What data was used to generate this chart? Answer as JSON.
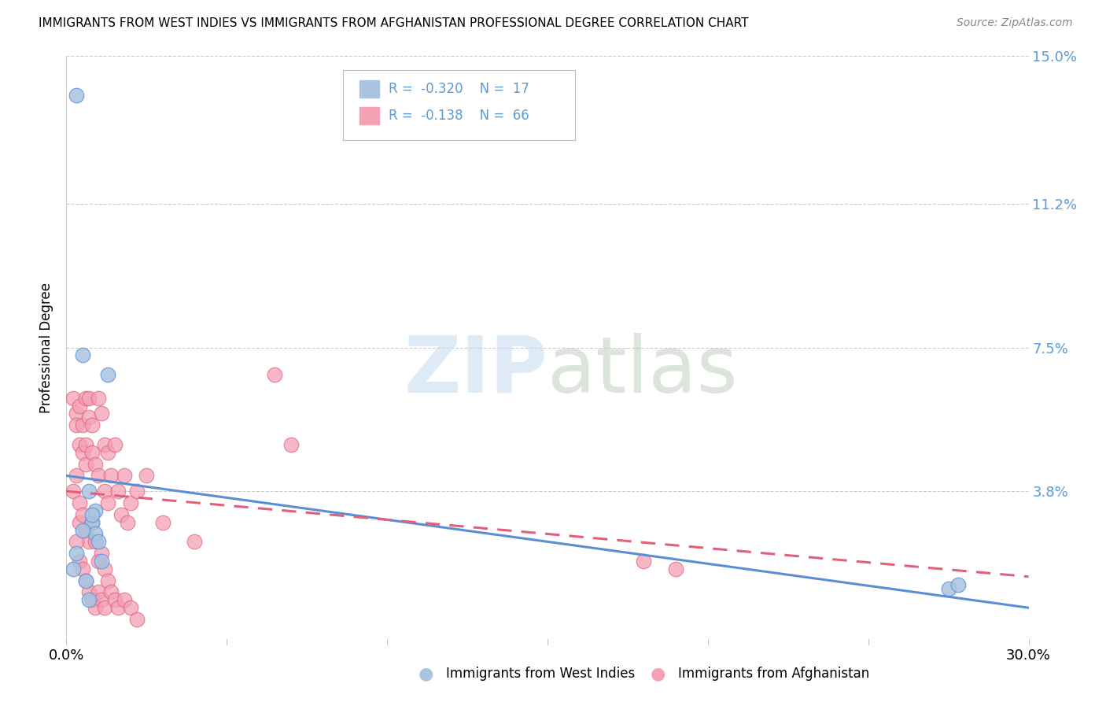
{
  "title": "IMMIGRANTS FROM WEST INDIES VS IMMIGRANTS FROM AFGHANISTAN PROFESSIONAL DEGREE CORRELATION CHART",
  "source": "Source: ZipAtlas.com",
  "ylabel": "Professional Degree",
  "xmin": 0.0,
  "xmax": 0.3,
  "ymin": 0.0,
  "ymax": 0.15,
  "yticks": [
    0.0,
    0.038,
    0.075,
    0.112,
    0.15
  ],
  "ytick_labels": [
    "",
    "3.8%",
    "7.5%",
    "11.2%",
    "15.0%"
  ],
  "xticks": [
    0.0,
    0.05,
    0.1,
    0.15,
    0.2,
    0.25,
    0.3
  ],
  "xtick_labels": [
    "0.0%",
    "",
    "",
    "",
    "",
    "",
    "30.0%"
  ],
  "legend_blue_r": "-0.320",
  "legend_blue_n": "17",
  "legend_pink_r": "-0.138",
  "legend_pink_n": "66",
  "blue_color": "#a8c4e0",
  "pink_color": "#f4a0b5",
  "blue_line_color": "#5b8fd5",
  "pink_line_color": "#e0607a",
  "blue_points_x": [
    0.003,
    0.005,
    0.007,
    0.008,
    0.009,
    0.009,
    0.01,
    0.011,
    0.008,
    0.005,
    0.003,
    0.002,
    0.006,
    0.007,
    0.013,
    0.275,
    0.278
  ],
  "blue_points_y": [
    0.14,
    0.073,
    0.038,
    0.03,
    0.027,
    0.033,
    0.025,
    0.02,
    0.032,
    0.028,
    0.022,
    0.018,
    0.015,
    0.01,
    0.068,
    0.013,
    0.014
  ],
  "pink_points_x": [
    0.002,
    0.003,
    0.003,
    0.004,
    0.004,
    0.005,
    0.005,
    0.006,
    0.006,
    0.006,
    0.007,
    0.007,
    0.008,
    0.008,
    0.009,
    0.01,
    0.01,
    0.011,
    0.012,
    0.012,
    0.013,
    0.013,
    0.014,
    0.015,
    0.016,
    0.017,
    0.018,
    0.019,
    0.02,
    0.022,
    0.002,
    0.003,
    0.004,
    0.004,
    0.005,
    0.006,
    0.007,
    0.008,
    0.009,
    0.01,
    0.011,
    0.012,
    0.003,
    0.004,
    0.005,
    0.006,
    0.007,
    0.008,
    0.009,
    0.01,
    0.011,
    0.012,
    0.013,
    0.014,
    0.015,
    0.016,
    0.018,
    0.02,
    0.022,
    0.025,
    0.03,
    0.18,
    0.19,
    0.065,
    0.07,
    0.04
  ],
  "pink_points_y": [
    0.062,
    0.058,
    0.055,
    0.06,
    0.05,
    0.055,
    0.048,
    0.062,
    0.05,
    0.045,
    0.062,
    0.057,
    0.055,
    0.048,
    0.045,
    0.062,
    0.042,
    0.058,
    0.05,
    0.038,
    0.048,
    0.035,
    0.042,
    0.05,
    0.038,
    0.032,
    0.042,
    0.03,
    0.035,
    0.038,
    0.038,
    0.042,
    0.035,
    0.03,
    0.032,
    0.028,
    0.025,
    0.03,
    0.025,
    0.02,
    0.022,
    0.018,
    0.025,
    0.02,
    0.018,
    0.015,
    0.012,
    0.01,
    0.008,
    0.012,
    0.01,
    0.008,
    0.015,
    0.012,
    0.01,
    0.008,
    0.01,
    0.008,
    0.005,
    0.042,
    0.03,
    0.02,
    0.018,
    0.068,
    0.05,
    0.025
  ],
  "blue_line_x0": 0.0,
  "blue_line_y0": 0.042,
  "blue_line_x1": 0.3,
  "blue_line_y1": 0.008,
  "pink_line_x0": 0.0,
  "pink_line_y0": 0.038,
  "pink_line_x1": 0.3,
  "pink_line_y1": 0.016
}
